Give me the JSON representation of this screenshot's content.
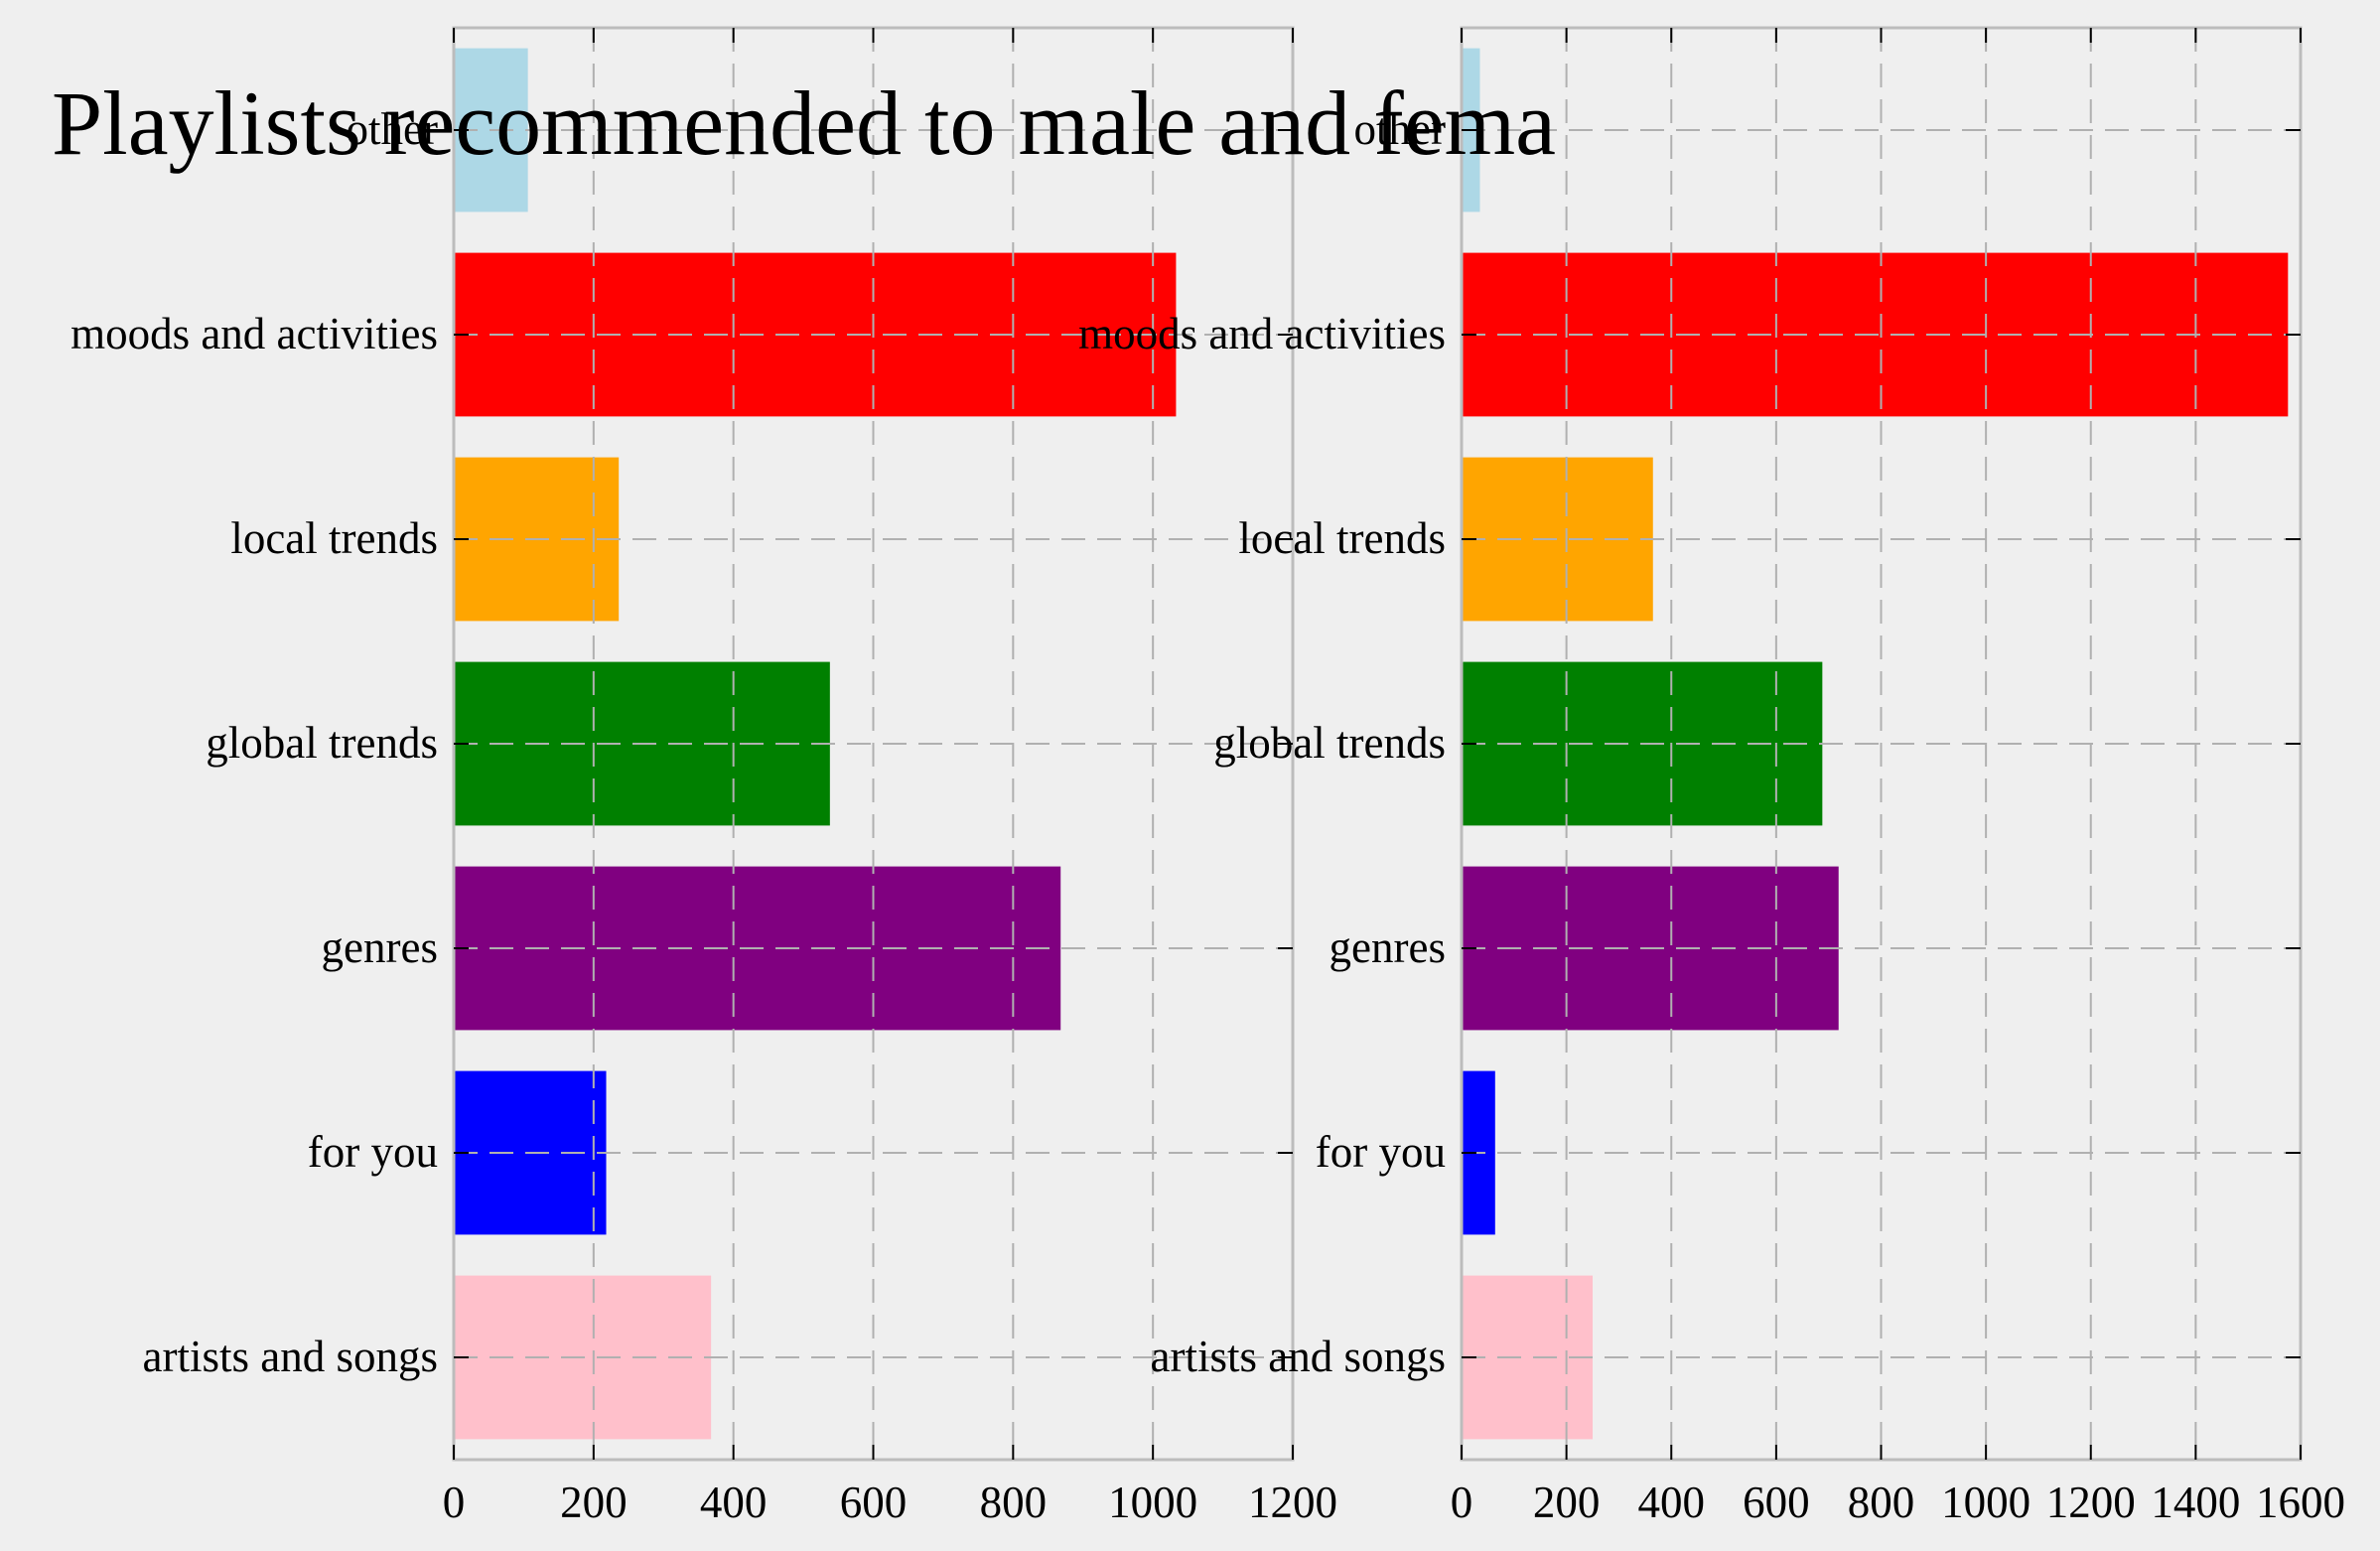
{
  "title": "Playlists recommended to male and fema",
  "chart_data": [
    {
      "type": "bar",
      "orientation": "horizontal",
      "panel": "left",
      "categories": [
        "artists and songs",
        "for you",
        "genres",
        "global trends",
        "local trends",
        "moods and activities",
        "other"
      ],
      "values": [
        368,
        218,
        868,
        538,
        236,
        1033,
        106
      ],
      "colors": [
        "#ffc0cb",
        "#0000ff",
        "#800080",
        "#008000",
        "#ffa500",
        "#ff0000",
        "#add8e6"
      ],
      "xlim": [
        0,
        1200
      ],
      "xticks": [
        0,
        200,
        400,
        600,
        800,
        1000,
        1200
      ],
      "grid": true,
      "xlabel": "",
      "ylabel": ""
    },
    {
      "type": "bar",
      "orientation": "horizontal",
      "panel": "right",
      "categories": [
        "artists and songs",
        "for you",
        "genres",
        "global trends",
        "local trends",
        "moods and activities",
        "other"
      ],
      "values": [
        250,
        64,
        719,
        688,
        365,
        1576,
        35
      ],
      "colors": [
        "#ffc0cb",
        "#0000ff",
        "#800080",
        "#008000",
        "#ffa500",
        "#ff0000",
        "#add8e6"
      ],
      "xlim": [
        0,
        1600
      ],
      "xticks": [
        0,
        200,
        400,
        600,
        800,
        1000,
        1200,
        1400,
        1600
      ],
      "grid": true,
      "xlabel": "",
      "ylabel": ""
    }
  ],
  "style": {
    "background": "#efefef",
    "axis_color": "#bcbcbc",
    "grid_color": "#b0b0b0",
    "text_color": "#000000"
  }
}
